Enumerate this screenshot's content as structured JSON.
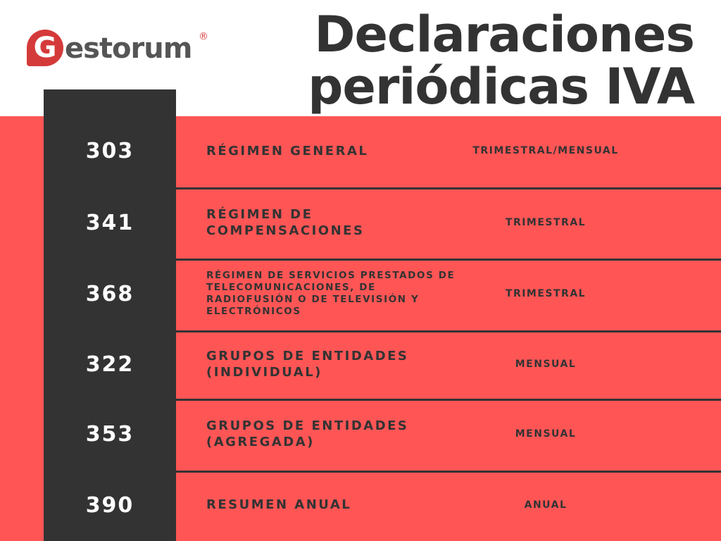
{
  "logo": {
    "initial": "G",
    "rest": "estorum",
    "mark": "®"
  },
  "header": {
    "title_line1": "Declaraciones",
    "title_line2": "periódicas IVA"
  },
  "table": {
    "rows": [
      {
        "code": "303",
        "name": "RÉGIMEN GENERAL",
        "frequency": "TRIMESTRAL/MENSUAL"
      },
      {
        "code": "341",
        "name": "RÉGIMEN DE COMPENSACIONES",
        "frequency": "TRIMESTRAL"
      },
      {
        "code": "368",
        "name": "RÉGIMEN DE SERVICIOS PRESTADOS DE TELECOMUNICACIONES, DE RADIOFUSIÓN O DE TELEVISIÓN Y ELECTRÓNICOS",
        "frequency": "TRIMESTRAL"
      },
      {
        "code": "322",
        "name": "GRUPOS DE ENTIDADES (INDIVIDUAL)",
        "frequency": "MENSUAL"
      },
      {
        "code": "353",
        "name": "GRUPOS DE ENTIDADES (AGREGADA)",
        "frequency": "MENSUAL"
      },
      {
        "code": "390",
        "name": "RESUMEN ANUAL",
        "frequency": "ANUAL"
      }
    ]
  }
}
